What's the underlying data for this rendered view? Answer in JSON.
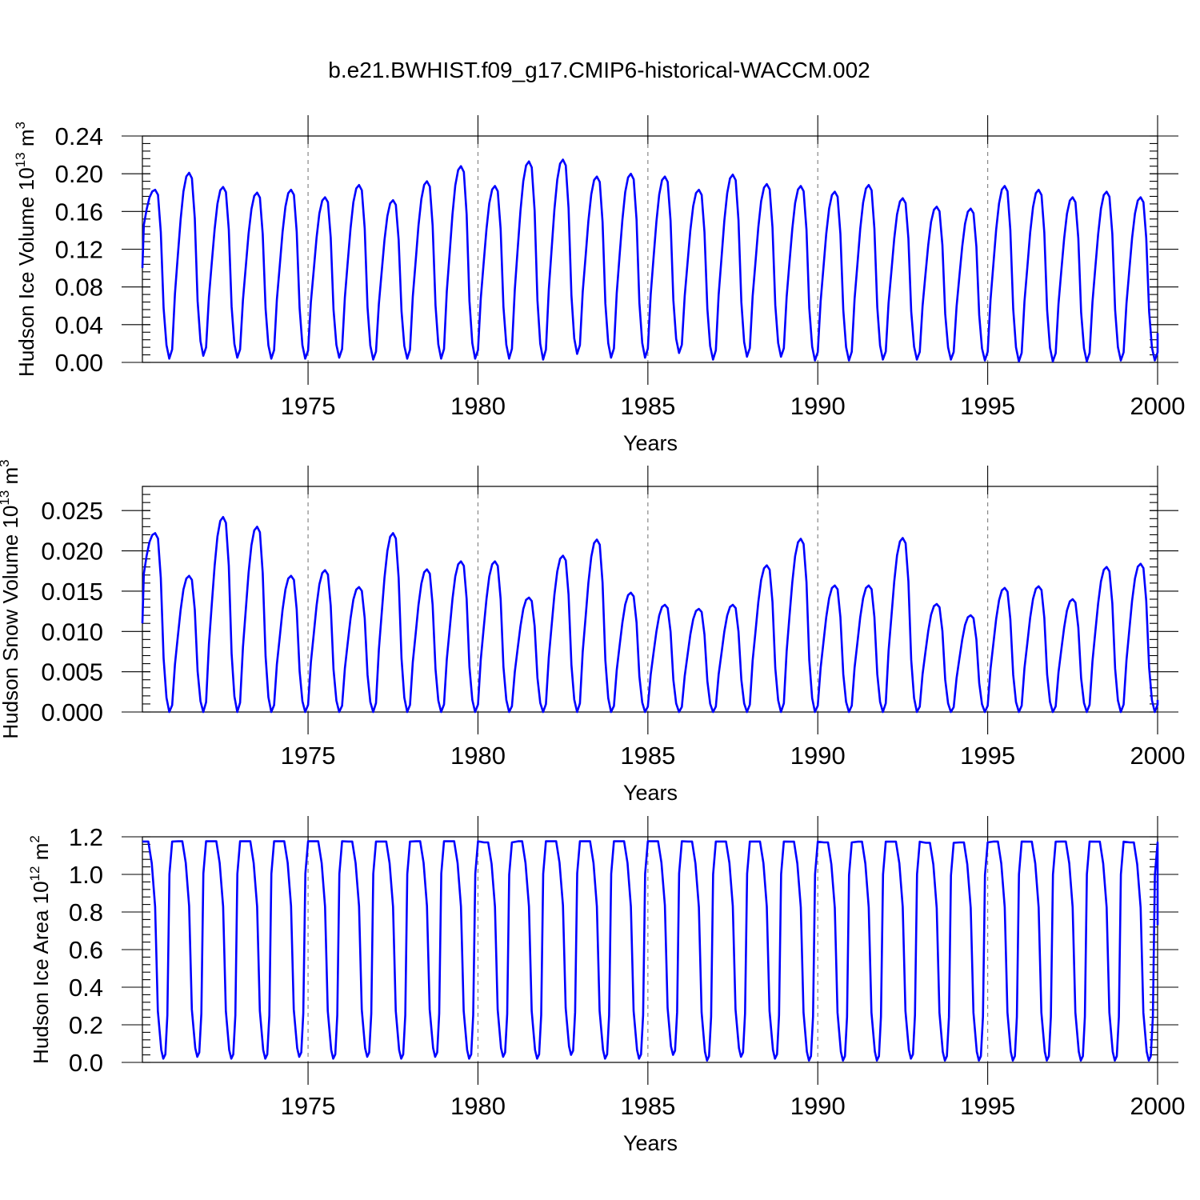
{
  "title": "b.e21.BWHIST.f09_g17.CMIP6-historical-WACCM.002",
  "colors": {
    "series": "#0000ff",
    "grid": "#888888",
    "axis": "#000000"
  },
  "chart_data": [
    {
      "type": "line",
      "name": "ice-volume",
      "ylabel": {
        "main": "Hudson Ice Volume 10",
        "sup": "13",
        "unit": " m",
        "unit_sup": "3"
      },
      "xlabel": "Years",
      "xlim": [
        1970.125,
        2000.0
      ],
      "ylim": [
        0.0,
        0.24
      ],
      "yticks": [
        0.0,
        0.04,
        0.08,
        0.12,
        0.16,
        0.2,
        0.24
      ],
      "ytick_labels": [
        "0.00",
        "0.04",
        "0.08",
        "0.12",
        "0.16",
        "0.20",
        "0.24"
      ],
      "minor_step": 0.008,
      "xticks": [
        1975,
        1980,
        1985,
        1990,
        1995,
        2000
      ],
      "xtick_labels": [
        "1975",
        "1980",
        "1985",
        "1990",
        "1995",
        "2000"
      ],
      "grid": "dashed vertical at 5-year marks",
      "start_year": 1970.125,
      "peaks": [
        0.183,
        0.201,
        0.186,
        0.18,
        0.183,
        0.175,
        0.188,
        0.172,
        0.192,
        0.208,
        0.187,
        0.213,
        0.215,
        0.197,
        0.2,
        0.197,
        0.183,
        0.199,
        0.189,
        0.187,
        0.181,
        0.188,
        0.174,
        0.165,
        0.163,
        0.187,
        0.183,
        0.175,
        0.181,
        0.175
      ],
      "troughs": [
        0.004,
        0.007,
        0.005,
        0.004,
        0.004,
        0.005,
        0.003,
        0.004,
        0.004,
        0.004,
        0.004,
        0.003,
        0.009,
        0.005,
        0.005,
        0.01,
        0.003,
        0.006,
        0.006,
        0.002,
        0.002,
        0.003,
        0.003,
        0.003,
        0.002,
        0.001,
        0.001,
        0.001,
        0.002,
        0.002
      ],
      "first_value": 0.1,
      "last_value": 0.031
    },
    {
      "type": "line",
      "name": "snow-volume",
      "ylabel": {
        "main": "Hudson Snow Volume 10",
        "sup": "13",
        "unit": " m",
        "unit_sup": "3"
      },
      "xlabel": "Years",
      "xlim": [
        1970.125,
        2000.0
      ],
      "ylim": [
        0.0,
        0.028
      ],
      "yticks": [
        0.0,
        0.005,
        0.01,
        0.015,
        0.02,
        0.025
      ],
      "ytick_labels": [
        "0.000",
        "0.005",
        "0.010",
        "0.015",
        "0.020",
        "0.025"
      ],
      "minor_step": 0.001,
      "xticks": [
        1975,
        1980,
        1985,
        1990,
        1995,
        2000
      ],
      "xtick_labels": [
        "1975",
        "1980",
        "1985",
        "1990",
        "1995",
        "2000"
      ],
      "grid": "dashed vertical at 5-year marks",
      "start_year": 1970.125,
      "peaks": [
        0.0222,
        0.0169,
        0.0242,
        0.023,
        0.0169,
        0.0176,
        0.0155,
        0.0222,
        0.0177,
        0.0187,
        0.0187,
        0.0142,
        0.0194,
        0.0214,
        0.0148,
        0.0133,
        0.0128,
        0.0133,
        0.0182,
        0.0215,
        0.0157,
        0.0157,
        0.0216,
        0.0134,
        0.012,
        0.0154,
        0.0156,
        0.014,
        0.018,
        0.0184
      ],
      "troughs": [
        0.0,
        0.0,
        0.0,
        0.0,
        0.0,
        0.0,
        0.0,
        0.0,
        0.0,
        0.0,
        0.0,
        0.0,
        0.0,
        0.0,
        0.0,
        0.0,
        0.0,
        0.0,
        0.0,
        0.0,
        0.0,
        0.0,
        0.0,
        0.0,
        0.0,
        0.0,
        0.0,
        0.0,
        0.0,
        0.0
      ],
      "first_value": 0.011,
      "last_value": 0.0015
    },
    {
      "type": "line",
      "name": "ice-area",
      "ylabel": {
        "main": "Hudson Ice Area 10",
        "sup": "12",
        "unit": " m",
        "unit_sup": "2"
      },
      "xlabel": "Years",
      "xlim": [
        1970.125,
        2000.0
      ],
      "ylim": [
        0.0,
        1.2
      ],
      "yticks": [
        0.0,
        0.2,
        0.4,
        0.6,
        0.8,
        1.0,
        1.2
      ],
      "ytick_labels": [
        "0.0",
        "0.2",
        "0.4",
        "0.6",
        "0.8",
        "1.0",
        "1.2"
      ],
      "minor_step": 0.04,
      "xticks": [
        1975,
        1980,
        1985,
        1990,
        1995,
        2000
      ],
      "xtick_labels": [
        "1975",
        "1980",
        "1985",
        "1990",
        "1995",
        "2000"
      ],
      "grid": "dashed vertical at 5-year marks",
      "start_year": 1970.125,
      "peaks": [
        1.175,
        1.176,
        1.176,
        1.176,
        1.176,
        1.176,
        1.175,
        1.175,
        1.176,
        1.176,
        1.17,
        1.176,
        1.176,
        1.176,
        1.176,
        1.176,
        1.175,
        1.175,
        1.175,
        1.174,
        1.17,
        1.174,
        1.174,
        1.168,
        1.17,
        1.175,
        1.174,
        1.175,
        1.174,
        1.17
      ],
      "troughs": [
        0.02,
        0.03,
        0.02,
        0.02,
        0.03,
        0.02,
        0.03,
        0.02,
        0.03,
        0.02,
        0.03,
        0.02,
        0.04,
        0.02,
        0.02,
        0.04,
        0.01,
        0.03,
        0.02,
        0.01,
        0.01,
        0.01,
        0.02,
        0.01,
        0.01,
        0.01,
        0.01,
        0.01,
        0.01,
        0.01
      ],
      "first_value": 1.175,
      "last_value": 0.73
    }
  ]
}
